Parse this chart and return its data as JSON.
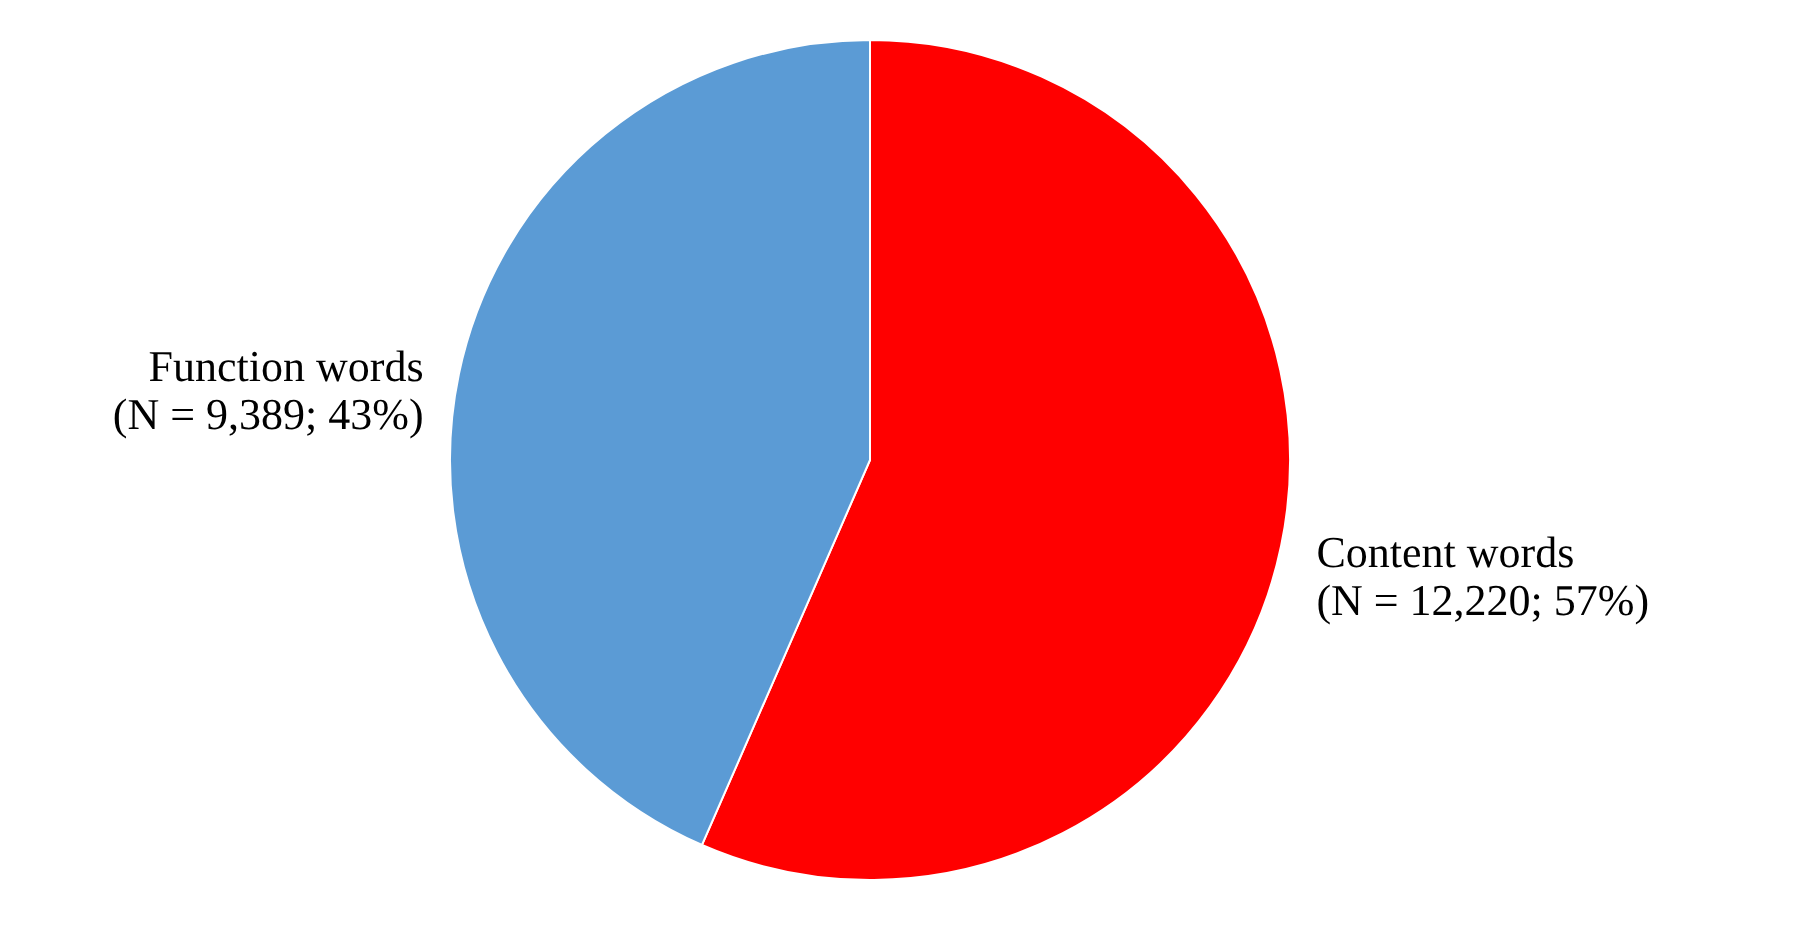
{
  "chart_data": {
    "type": "pie",
    "categories": [
      "Content words",
      "Function words"
    ],
    "values": [
      12220,
      9389
    ],
    "value_labels": [
      "(N = 12,220; 57%)",
      "(N = 9,389; 43%)"
    ],
    "colors": [
      "#ff0000",
      "#5b9bd5"
    ],
    "legend": false
  }
}
